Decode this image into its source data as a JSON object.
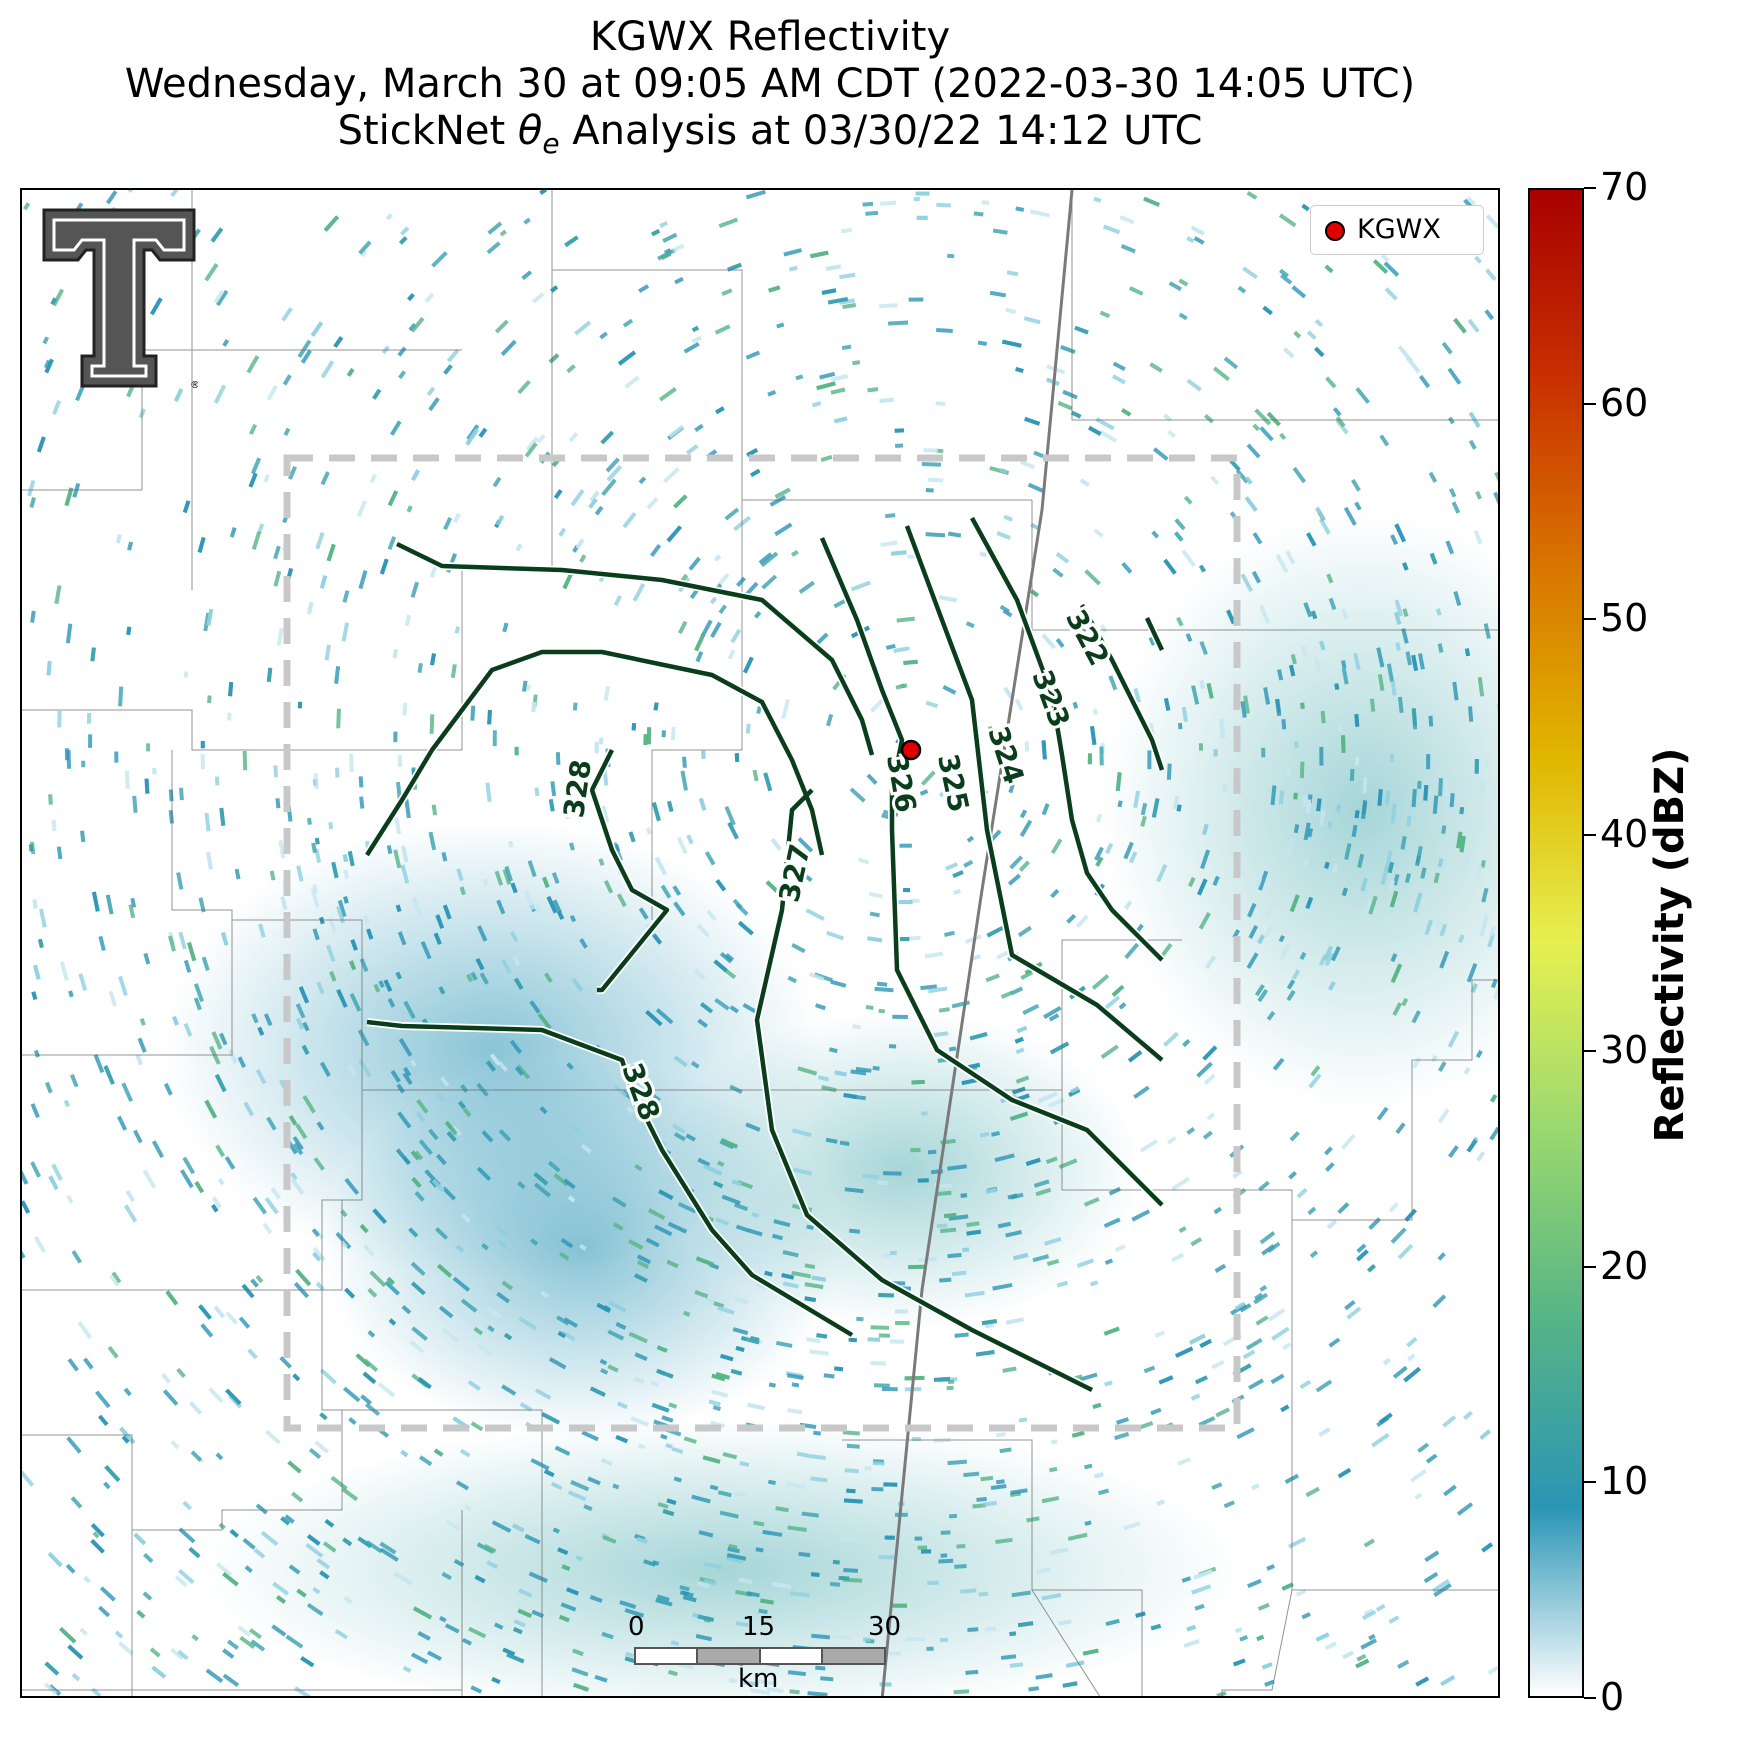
{
  "title": {
    "line1": "KGWX Reflectivity",
    "line2": "Wednesday, March 30 at 09:05 AM CDT (2022-03-30 14:05 UTC)",
    "line3_prefix": "StickNet ",
    "line3_symbol": "θ",
    "line3_subscript": "e",
    "line3_suffix": " Analysis at 03/30/22 14:12 UTC"
  },
  "legend": {
    "marker_label": "KGWX",
    "marker_color": "#e00000"
  },
  "colorbar": {
    "label": "Reflectivity (dBZ)",
    "ticks": [
      "0",
      "10",
      "20",
      "30",
      "40",
      "50",
      "60",
      "70"
    ],
    "range": [
      0,
      70
    ],
    "colors": [
      "#ffffff",
      "#2a95b5",
      "#56b486",
      "#9ad870",
      "#e6f050",
      "#e0b500",
      "#d87500",
      "#c83000",
      "#a80000"
    ]
  },
  "contours": {
    "color": "#0a3d1c",
    "labels": [
      "322",
      "323",
      "324",
      "325",
      "326",
      "327",
      "328",
      "328"
    ]
  },
  "scale_bar": {
    "ticks": [
      "0",
      "15",
      "30"
    ],
    "unit": "km"
  },
  "analysis_box": {
    "style": "dashed",
    "color": "#c8c8c8"
  },
  "logo": {
    "name": "texas-tech-double-t-logo",
    "mark": "®"
  }
}
